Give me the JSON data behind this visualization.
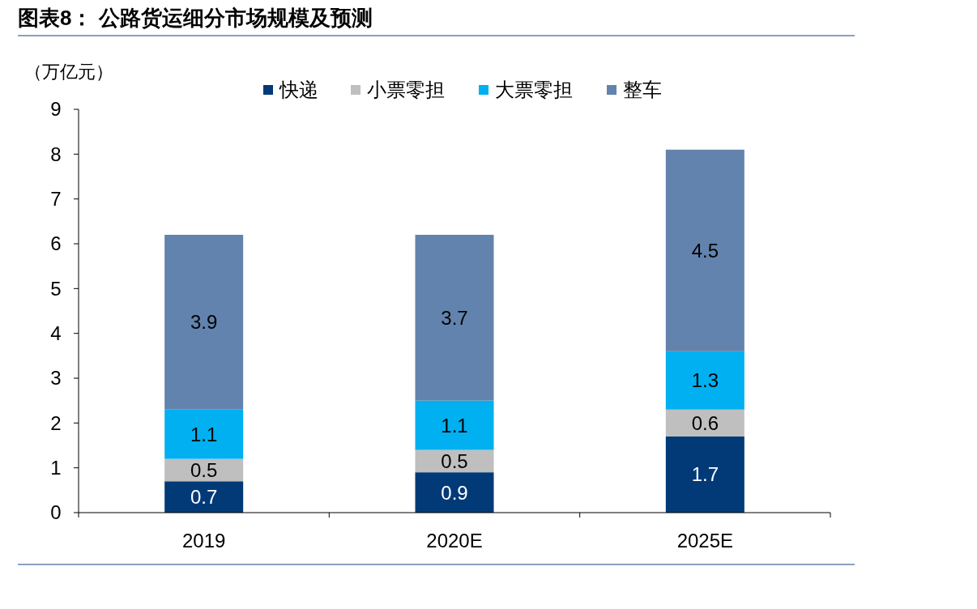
{
  "chart_data": {
    "type": "bar",
    "title": "图表8：  公路货运细分市场规模及预测",
    "ylabel": "（万亿元）",
    "categories": [
      "2019",
      "2020E",
      "2025E"
    ],
    "stacked": true,
    "data_labels": true,
    "legend": "top",
    "grid": false,
    "ylim": [
      0,
      9
    ],
    "yticks": [
      0,
      1,
      2,
      3,
      4,
      5,
      6,
      7,
      8,
      9
    ],
    "series": [
      {
        "name": "快递",
        "color": "#023a78",
        "values": [
          0.7,
          0.9,
          1.7
        ]
      },
      {
        "name": "小票零担",
        "color": "#bfbfbf",
        "values": [
          0.5,
          0.5,
          0.6
        ]
      },
      {
        "name": "大票零担",
        "color": "#00b0f0",
        "values": [
          1.1,
          1.1,
          1.3
        ]
      },
      {
        "name": "整车",
        "color": "#6283ad",
        "values": [
          3.9,
          3.7,
          4.5
        ]
      }
    ]
  }
}
